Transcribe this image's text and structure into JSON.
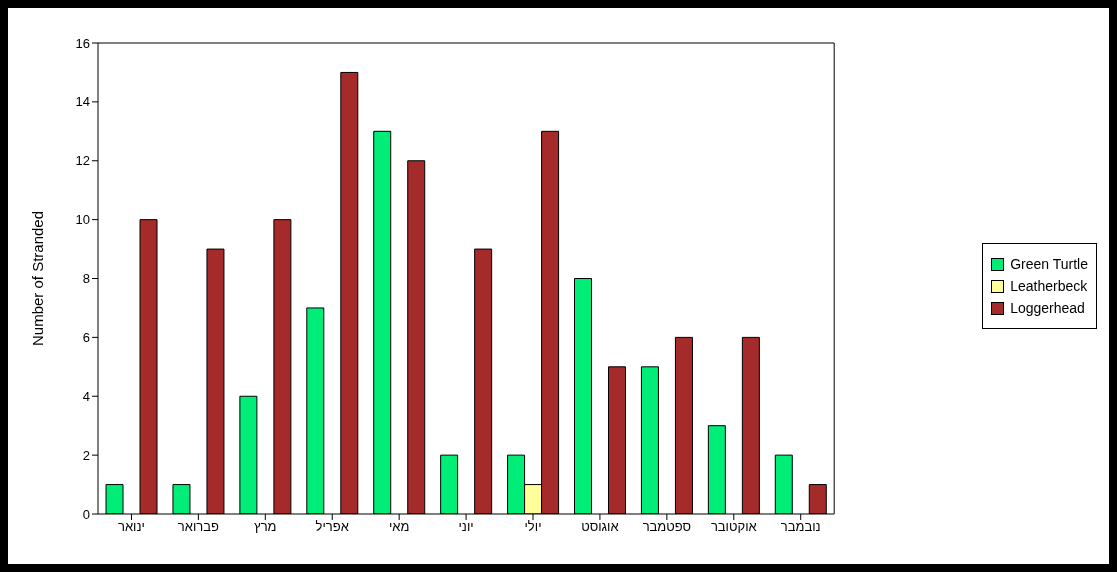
{
  "chart_data": {
    "type": "bar",
    "ylabel": "Number of Stranded",
    "categories": [
      "ינואר",
      "פברואר",
      "מרץ",
      "אפריל",
      "מאי",
      "יוני",
      "יולי",
      "אוגוסט",
      "ספטמבר",
      "אוקטובר",
      "נובמבר"
    ],
    "series": [
      {
        "name": "Green Turtle",
        "color": "#00ee77",
        "values": [
          1,
          1,
          4,
          7,
          13,
          2,
          2,
          8,
          5,
          3,
          2
        ]
      },
      {
        "name": "Leatherbeck",
        "color": "#ffff99",
        "values": [
          null,
          null,
          null,
          null,
          null,
          null,
          1,
          null,
          null,
          null,
          null
        ]
      },
      {
        "name": "Loggerhead",
        "color": "#a52a2a",
        "values": [
          10,
          9,
          10,
          15,
          12,
          9,
          13,
          5,
          6,
          6,
          1
        ]
      }
    ],
    "ylim": [
      0,
      16
    ],
    "yticks": [
      0,
      2,
      4,
      6,
      8,
      10,
      12,
      14,
      16
    ],
    "grid": false,
    "legend": "right"
  }
}
